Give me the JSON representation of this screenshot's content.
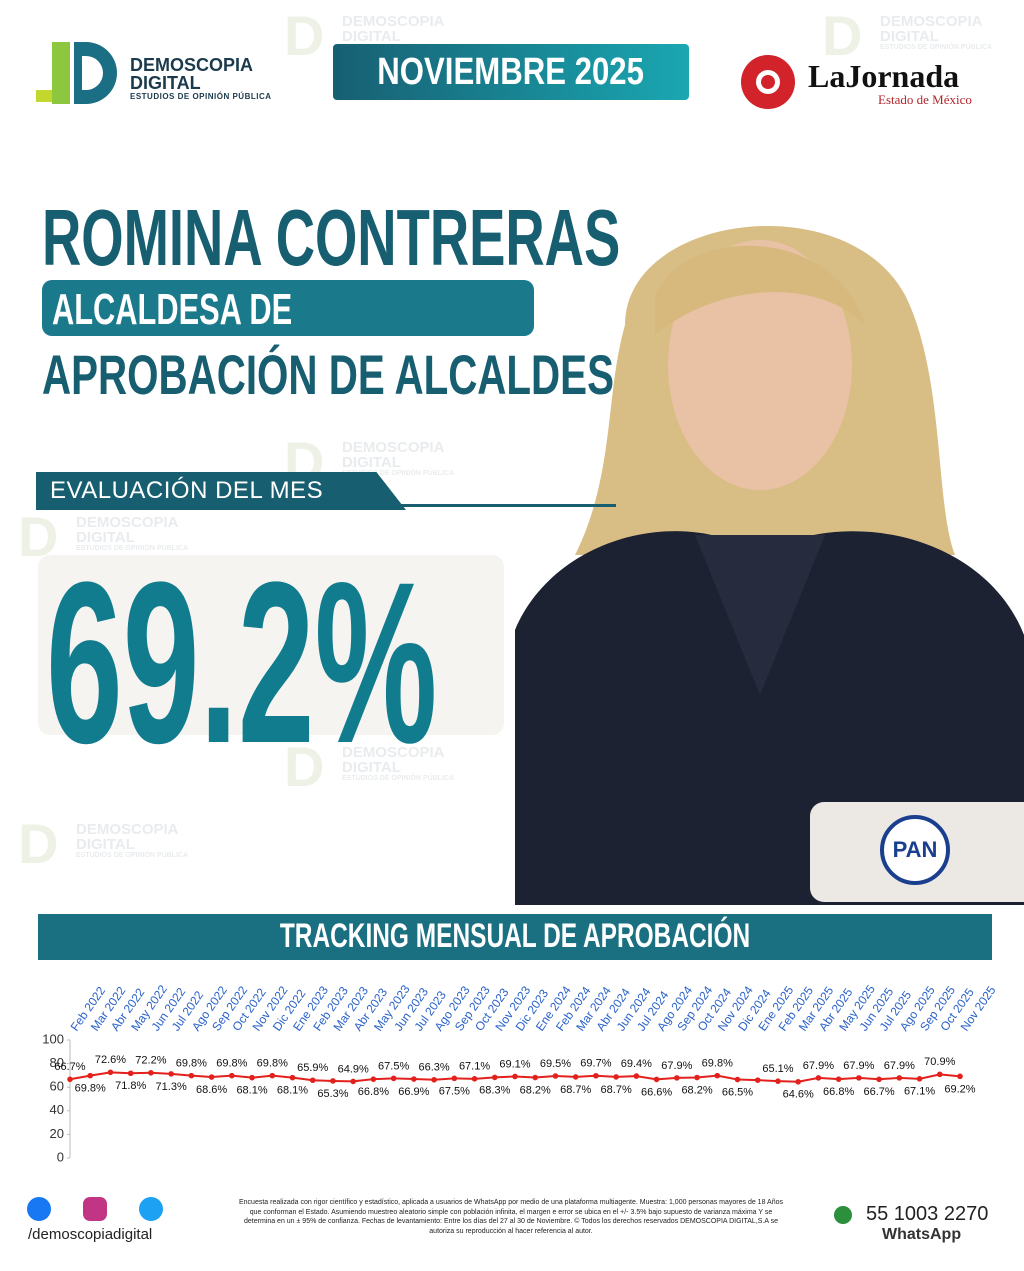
{
  "header": {
    "logo_title": "DEMOSCOPIA",
    "logo_subtitle": "DIGITAL",
    "logo_tagline": "ESTUDIOS DE OPINIÓN PÚBLICA",
    "month": "NOVIEMBRE 2025",
    "partner_name": "LaJornada",
    "partner_region": "Estado de México"
  },
  "watermark": {
    "line1": "DEMOSCOPIA",
    "line2": "DIGITAL",
    "line3": "ESTUDIOS DE OPINIÓN PÚBLICA"
  },
  "hero": {
    "name": "ROMINA CONTRERAS",
    "role": "ALCALDESA DE HUIXQUILUCAN",
    "topic": "APROBACIÓN DE ALCALDES",
    "evaluation_label": "EVALUACIÓN DEL MES",
    "evaluation_value": "69.2%",
    "party": "PAN"
  },
  "chart_data": {
    "type": "line",
    "title": "TRACKING MENSUAL DE APROBACIÓN",
    "categories": [
      "Feb 2022",
      "Mar 2022",
      "Abr 2022",
      "May 2022",
      "Jun 2022",
      "Jul 2022",
      "Ago 2022",
      "Sep 2022",
      "Oct 2022",
      "Nov 2022",
      "Dic 2022",
      "Ene 2023",
      "Feb 2023",
      "Mar 2023",
      "Abr 2023",
      "May 2023",
      "Jun 2023",
      "Jul 2023",
      "Ago 2023",
      "Sep 2023",
      "Oct 2023",
      "Nov 2023",
      "Dic 2023",
      "Ene 2024",
      "Feb 2024",
      "Mar 2024",
      "Abr 2024",
      "Jun 2024",
      "Jul 2024",
      "Ago 2024",
      "Sep 2024",
      "Oct 2024",
      "Nov 2024",
      "Dic 2024",
      "Ene 2025",
      "Feb 2025",
      "Mar 2025",
      "Abr 2025",
      "May 2025",
      "Jun 2025",
      "Jul 2025",
      "Ago 2025",
      "Sep 2025",
      "Oct 2025",
      "Nov 2025"
    ],
    "series": [
      {
        "name": "Aprobación",
        "color": "#e3201b",
        "values": [
          66.7,
          69.8,
          72.6,
          71.8,
          72.2,
          71.3,
          69.8,
          68.6,
          69.8,
          68.1,
          69.8,
          68.1,
          65.9,
          65.3,
          64.9,
          66.8,
          67.5,
          66.9,
          66.3,
          67.5,
          67.1,
          68.3,
          69.1,
          68.2,
          69.5,
          68.7,
          69.7,
          68.7,
          69.4,
          66.6,
          67.9,
          68.2,
          69.8,
          66.5,
          66.0,
          65.1,
          64.6,
          67.9,
          66.8,
          67.9,
          66.7,
          67.9,
          67.1,
          70.9,
          69.2
        ],
        "value_labels": [
          "66.7%",
          "69.8%",
          "72.6%",
          "71.8%",
          "72.2%",
          "71.3%",
          "69.8%",
          "68.6%",
          "69.8%",
          "68.1%",
          "69.8%",
          "68.1%",
          "65.9%",
          "65.3%",
          "64.9%",
          "66.8%",
          "67.5%",
          "66.9%",
          "66.3%",
          "67.5%",
          "67.1%",
          "68.3%",
          "69.1%",
          "68.2%",
          "69.5%",
          "68.7%",
          "69.7%",
          "68.7%",
          "69.4%",
          "66.6%",
          "67.9%",
          "68.2%",
          "69.8%",
          "66.5%",
          null,
          "65.1%",
          "64.6%",
          "67.9%",
          "66.8%",
          "67.9%",
          "66.7%",
          "67.9%",
          "67.1%",
          "70.9%",
          "69.2%"
        ]
      }
    ],
    "ylim": [
      0,
      100
    ],
    "yticks": [
      0,
      20,
      40,
      60,
      80,
      100
    ],
    "grid": false
  },
  "footer": {
    "social_handle": "/demoscopiadigital",
    "disclaimer": "Encuesta realizada con rigor científico y estadístico, aplicada a usuarios de WhatsApp por medio de una plataforma multiagente. Muestra: 1,000 personas mayores de 18 Años que conforman el Estado. Asumiendo muestreo aleatorio simple con población infinita, el margen e error se ubica en el +/- 3.5% bajo supuesto de varianza máxima Y se determina en un ± 95% de confianza. Fechas de levantamiento: Entre los días del 27 al 30 de Noviembre. © Todos los derechos reservados DEMOSCOPIA DIGITAL,S.A se autoriza su reproducción al hacer referencia al autor.",
    "phone": "55 1003 2270",
    "phone_channel": "WhatsApp"
  }
}
